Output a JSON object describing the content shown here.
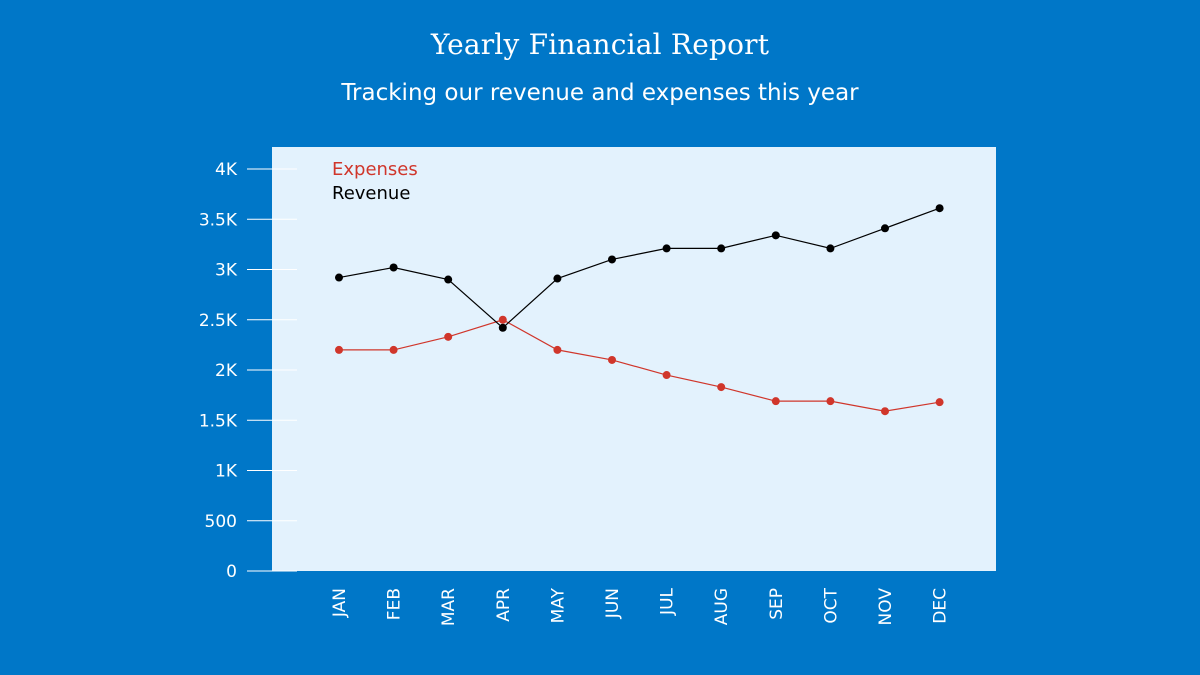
{
  "header": {
    "title": "Yearly Financial Report",
    "subtitle": "Tracking our revenue and expenses this year"
  },
  "colors": {
    "background": "#0077c8",
    "plot_background": "#e3f2fd",
    "expenses": "#d0362b",
    "revenue": "#000000",
    "axis_text": "#ffffff"
  },
  "chart_data": {
    "type": "line",
    "title": "Yearly Financial Report",
    "subtitle": "Tracking our revenue and expenses this year",
    "categories": [
      "JAN",
      "FEB",
      "MAR",
      "APR",
      "MAY",
      "JUN",
      "JUL",
      "AUG",
      "SEP",
      "OCT",
      "NOV",
      "DEC"
    ],
    "series": [
      {
        "name": "Expenses",
        "color": "#d0362b",
        "values": [
          2200,
          2200,
          2330,
          2500,
          2200,
          2100,
          1950,
          1830,
          1690,
          1690,
          1590,
          1680
        ]
      },
      {
        "name": "Revenue",
        "color": "#000000",
        "values": [
          2920,
          3020,
          2900,
          2420,
          2910,
          3100,
          3210,
          3210,
          3340,
          3210,
          3410,
          3610
        ]
      }
    ],
    "yticks": [
      0,
      500,
      1000,
      1500,
      2000,
      2500,
      3000,
      3500,
      4000
    ],
    "ytick_labels": [
      "0",
      "500",
      "1K",
      "1.5K",
      "2K",
      "2.5K",
      "3K",
      "3.5K",
      "4K"
    ],
    "ylim": [
      0,
      4200
    ],
    "xlabel": "",
    "ylabel": "",
    "grid": false,
    "legend_position": "top-left"
  }
}
